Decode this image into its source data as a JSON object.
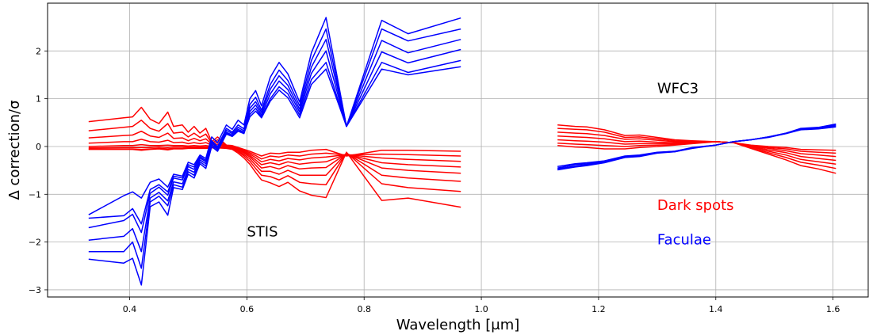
{
  "chart_data": {
    "type": "line",
    "xlabel": "Wavelength [μm]",
    "ylabel": "Δ correction/σ",
    "xlim": [
      0.26,
      1.66
    ],
    "ylim": [
      -3.15,
      3.0
    ],
    "xticks": [
      0.4,
      0.6,
      0.8,
      1.0,
      1.2,
      1.4,
      1.6
    ],
    "xtick_labels": [
      "0.4",
      "0.6",
      "0.8",
      "1.0",
      "1.2",
      "1.4",
      "1.6"
    ],
    "yticks": [
      -3,
      -2,
      -1,
      0,
      1,
      2
    ],
    "ytick_labels": [
      "−3",
      "−2",
      "−1",
      "0",
      "1",
      "2"
    ],
    "grid": true,
    "annotations": [
      {
        "text": "STIS",
        "x": 0.6,
        "y": -1.88,
        "color": "#000000"
      },
      {
        "text": "WFC3",
        "x": 1.3,
        "y": 1.12,
        "color": "#000000"
      },
      {
        "text": "Dark spots",
        "x": 1.3,
        "y": -1.33,
        "color": "#ff0000"
      },
      {
        "text": "Faculae",
        "x": 1.3,
        "y": -2.05,
        "color": "#0000ff"
      }
    ],
    "colors": {
      "dark_spots": "#ff0000",
      "faculae": "#0000ff"
    },
    "stis": {
      "x": [
        0.33,
        0.39,
        0.405,
        0.42,
        0.435,
        0.45,
        0.465,
        0.475,
        0.49,
        0.5,
        0.51,
        0.52,
        0.53,
        0.54,
        0.55,
        0.565,
        0.575,
        0.585,
        0.595,
        0.605,
        0.615,
        0.625,
        0.64,
        0.655,
        0.67,
        0.69,
        0.71,
        0.735,
        0.77,
        0.83,
        0.875,
        0.965
      ],
      "red": [
        [
          0.52,
          0.6,
          0.62,
          0.82,
          0.57,
          0.48,
          0.72,
          0.42,
          0.45,
          0.3,
          0.42,
          0.28,
          0.38,
          0.1,
          0.2,
          0.03,
          0.02,
          -0.02,
          -0.06,
          -0.1,
          -0.15,
          -0.2,
          -0.14,
          -0.15,
          -0.12,
          -0.12,
          -0.08,
          -0.06,
          -0.2,
          -0.08,
          -0.08,
          -0.1
        ],
        [
          0.33,
          0.4,
          0.42,
          0.55,
          0.38,
          0.32,
          0.48,
          0.28,
          0.3,
          0.2,
          0.28,
          0.19,
          0.26,
          0.07,
          0.14,
          0.02,
          0.01,
          -0.03,
          -0.08,
          -0.13,
          -0.19,
          -0.26,
          -0.2,
          -0.22,
          -0.18,
          -0.2,
          -0.16,
          -0.14,
          -0.18,
          -0.16,
          -0.17,
          -0.2
        ],
        [
          0.18,
          0.23,
          0.24,
          0.32,
          0.22,
          0.19,
          0.28,
          0.17,
          0.18,
          0.12,
          0.17,
          0.12,
          0.16,
          0.05,
          0.09,
          0.01,
          0.0,
          -0.04,
          -0.1,
          -0.16,
          -0.23,
          -0.32,
          -0.27,
          -0.3,
          -0.25,
          -0.28,
          -0.24,
          -0.22,
          -0.17,
          -0.24,
          -0.27,
          -0.31
        ],
        [
          0.07,
          0.1,
          0.1,
          0.15,
          0.1,
          0.09,
          0.13,
          0.08,
          0.09,
          0.06,
          0.08,
          0.06,
          0.08,
          0.03,
          0.05,
          0.0,
          -0.01,
          -0.05,
          -0.12,
          -0.19,
          -0.28,
          -0.38,
          -0.34,
          -0.38,
          -0.32,
          -0.37,
          -0.34,
          -0.32,
          -0.16,
          -0.34,
          -0.38,
          -0.43
        ],
        [
          0.0,
          0.02,
          0.02,
          0.04,
          0.02,
          0.02,
          0.03,
          0.02,
          0.02,
          0.01,
          0.02,
          0.01,
          0.02,
          0.0,
          0.01,
          -0.01,
          -0.02,
          -0.07,
          -0.14,
          -0.22,
          -0.33,
          -0.45,
          -0.42,
          -0.47,
          -0.4,
          -0.47,
          -0.45,
          -0.44,
          -0.15,
          -0.45,
          -0.5,
          -0.56
        ],
        [
          -0.03,
          -0.02,
          -0.02,
          -0.02,
          -0.02,
          -0.01,
          -0.02,
          -0.01,
          -0.01,
          -0.01,
          -0.01,
          -0.01,
          -0.01,
          -0.01,
          -0.01,
          -0.02,
          -0.03,
          -0.09,
          -0.17,
          -0.26,
          -0.39,
          -0.52,
          -0.52,
          -0.58,
          -0.5,
          -0.6,
          -0.6,
          -0.6,
          -0.14,
          -0.6,
          -0.66,
          -0.73
        ],
        [
          -0.05,
          -0.05,
          -0.05,
          -0.06,
          -0.05,
          -0.04,
          -0.05,
          -0.04,
          -0.04,
          -0.03,
          -0.03,
          -0.03,
          -0.03,
          -0.02,
          -0.02,
          -0.03,
          -0.05,
          -0.11,
          -0.2,
          -0.31,
          -0.46,
          -0.6,
          -0.63,
          -0.7,
          -0.61,
          -0.75,
          -0.78,
          -0.8,
          -0.13,
          -0.78,
          -0.86,
          -0.94
        ],
        [
          -0.06,
          -0.06,
          -0.06,
          -0.08,
          -0.06,
          -0.05,
          -0.07,
          -0.05,
          -0.05,
          -0.04,
          -0.04,
          -0.04,
          -0.04,
          -0.03,
          -0.03,
          -0.04,
          -0.06,
          -0.14,
          -0.24,
          -0.37,
          -0.54,
          -0.7,
          -0.76,
          -0.84,
          -0.75,
          -0.93,
          -1.02,
          -1.07,
          -0.12,
          -1.13,
          -1.08,
          -1.27
        ]
      ],
      "blue": [
        [
          -1.43,
          -1.03,
          -0.95,
          -1.08,
          -0.75,
          -0.68,
          -0.85,
          -0.58,
          -0.62,
          -0.33,
          -0.38,
          -0.18,
          -0.25,
          0.2,
          0.08,
          0.45,
          0.36,
          0.55,
          0.45,
          1.0,
          1.17,
          0.85,
          1.45,
          1.76,
          1.52,
          0.93,
          1.96,
          2.7,
          0.42,
          2.64,
          2.36,
          2.69
        ],
        [
          -1.7,
          -1.55,
          -1.42,
          -1.8,
          -0.98,
          -0.85,
          -1.02,
          -0.66,
          -0.7,
          -0.42,
          -0.48,
          -0.24,
          -0.32,
          0.12,
          0.0,
          0.38,
          0.3,
          0.45,
          0.37,
          0.88,
          1.03,
          0.76,
          1.3,
          1.6,
          1.38,
          0.85,
          1.8,
          2.46,
          0.42,
          2.46,
          2.21,
          2.46
        ],
        [
          -1.96,
          -1.88,
          -1.72,
          -2.2,
          -1.08,
          -0.96,
          -1.14,
          -0.74,
          -0.78,
          -0.48,
          -0.54,
          -0.28,
          -0.36,
          0.08,
          -0.04,
          0.34,
          0.27,
          0.4,
          0.33,
          0.8,
          0.94,
          0.71,
          1.2,
          1.48,
          1.28,
          0.78,
          1.66,
          2.24,
          0.42,
          2.22,
          1.96,
          2.24
        ],
        [
          -2.2,
          -2.2,
          -2.0,
          -2.55,
          -1.16,
          -1.04,
          -1.24,
          -0.8,
          -0.85,
          -0.53,
          -0.6,
          -0.32,
          -0.41,
          0.04,
          -0.07,
          0.3,
          0.24,
          0.36,
          0.3,
          0.73,
          0.87,
          0.66,
          1.1,
          1.37,
          1.19,
          0.72,
          1.53,
          2.0,
          0.42,
          1.98,
          1.75,
          2.03
        ],
        [
          -2.36,
          -2.44,
          -2.34,
          -2.9,
          -1.26,
          -1.16,
          -1.44,
          -0.86,
          -0.9,
          -0.58,
          -0.66,
          -0.36,
          -0.46,
          0.0,
          -0.1,
          0.26,
          0.21,
          0.32,
          0.27,
          0.67,
          0.8,
          0.62,
          1.0,
          1.25,
          1.1,
          0.66,
          1.4,
          1.76,
          0.42,
          1.76,
          1.55,
          1.8
        ],
        [
          -1.5,
          -1.45,
          -1.3,
          -1.62,
          -0.9,
          -0.8,
          -0.95,
          -0.62,
          -0.66,
          -0.38,
          -0.43,
          -0.21,
          -0.29,
          0.1,
          -0.02,
          0.28,
          0.22,
          0.33,
          0.28,
          0.62,
          0.74,
          0.6,
          0.95,
          1.18,
          1.02,
          0.6,
          1.3,
          1.62,
          0.42,
          1.62,
          1.5,
          1.67
        ]
      ]
    },
    "wfc3": {
      "x": [
        1.13,
        1.16,
        1.18,
        1.21,
        1.245,
        1.27,
        1.3,
        1.33,
        1.36,
        1.4,
        1.43,
        1.46,
        1.49,
        1.52,
        1.545,
        1.575,
        1.605
      ],
      "red": [
        [
          0.45,
          0.42,
          0.41,
          0.35,
          0.23,
          0.24,
          0.19,
          0.14,
          0.12,
          0.1,
          0.08,
          0.03,
          0.0,
          -0.02,
          -0.06,
          -0.07,
          -0.08
        ],
        [
          0.38,
          0.36,
          0.35,
          0.3,
          0.19,
          0.2,
          0.16,
          0.12,
          0.11,
          0.1,
          0.08,
          0.02,
          -0.02,
          -0.05,
          -0.1,
          -0.12,
          -0.14
        ],
        [
          0.3,
          0.28,
          0.27,
          0.23,
          0.15,
          0.16,
          0.13,
          0.1,
          0.1,
          0.1,
          0.08,
          0.01,
          -0.04,
          -0.09,
          -0.15,
          -0.18,
          -0.21
        ],
        [
          0.22,
          0.2,
          0.19,
          0.16,
          0.1,
          0.11,
          0.09,
          0.08,
          0.09,
          0.1,
          0.08,
          0.0,
          -0.07,
          -0.13,
          -0.21,
          -0.25,
          -0.29
        ],
        [
          0.14,
          0.12,
          0.11,
          0.09,
          0.05,
          0.06,
          0.06,
          0.06,
          0.08,
          0.1,
          0.08,
          -0.01,
          -0.1,
          -0.18,
          -0.27,
          -0.32,
          -0.37
        ],
        [
          0.07,
          0.05,
          0.04,
          0.02,
          0.0,
          0.02,
          0.03,
          0.04,
          0.07,
          0.1,
          0.08,
          -0.03,
          -0.13,
          -0.23,
          -0.33,
          -0.39,
          -0.46
        ],
        [
          0.02,
          -0.01,
          -0.02,
          -0.05,
          -0.05,
          -0.02,
          0.0,
          0.03,
          0.06,
          0.1,
          0.08,
          -0.04,
          -0.16,
          -0.28,
          -0.4,
          -0.47,
          -0.56
        ]
      ],
      "blue": [
        [
          -0.42,
          -0.36,
          -0.34,
          -0.3,
          -0.2,
          -0.18,
          -0.12,
          -0.1,
          -0.02,
          0.03,
          0.1,
          0.14,
          0.2,
          0.28,
          0.38,
          0.4,
          0.47
        ],
        [
          -0.45,
          -0.38,
          -0.36,
          -0.31,
          -0.21,
          -0.19,
          -0.13,
          -0.1,
          -0.03,
          0.03,
          0.1,
          0.14,
          0.2,
          0.28,
          0.37,
          0.39,
          0.45
        ],
        [
          -0.47,
          -0.41,
          -0.38,
          -0.33,
          -0.22,
          -0.2,
          -0.13,
          -0.11,
          -0.03,
          0.03,
          0.1,
          0.14,
          0.2,
          0.27,
          0.36,
          0.38,
          0.43
        ],
        [
          -0.49,
          -0.43,
          -0.4,
          -0.34,
          -0.23,
          -0.21,
          -0.14,
          -0.11,
          -0.04,
          0.03,
          0.1,
          0.14,
          0.19,
          0.27,
          0.35,
          0.37,
          0.41
        ]
      ]
    }
  }
}
